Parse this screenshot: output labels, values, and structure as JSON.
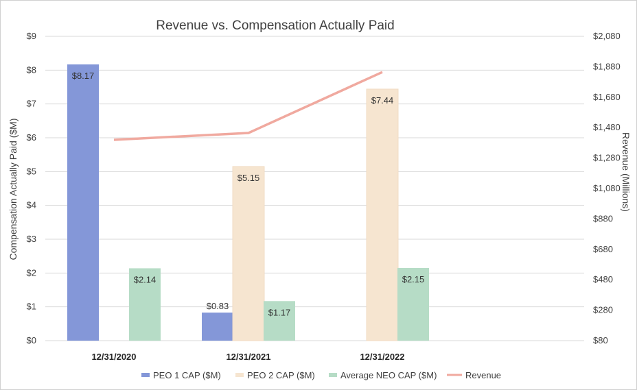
{
  "chart_data": {
    "type": "bar",
    "title": "Revenue vs. Compensation Actually Paid",
    "categories": [
      "12/31/2020",
      "12/31/2021",
      "12/31/2022"
    ],
    "series": [
      {
        "name": "PEO 1 CAP ($M)",
        "color": "#8497d8",
        "values": [
          8.17,
          0.83,
          null
        ],
        "labels": [
          "$8.17",
          "$0.83",
          ""
        ]
      },
      {
        "name": "PEO 2 CAP ($M)",
        "color": "#f6e5d0",
        "values": [
          null,
          5.15,
          7.44
        ],
        "labels": [
          "",
          "$5.15",
          "$7.44"
        ]
      },
      {
        "name": "Average NEO CAP ($M)",
        "color": "#b6dcc6",
        "values": [
          2.14,
          1.17,
          2.15
        ],
        "labels": [
          "$2.14",
          "$1.17",
          "$2.15"
        ]
      }
    ],
    "line_series": {
      "name": "Revenue",
      "color": "#f0a99f",
      "values": [
        1400,
        1445,
        1845
      ],
      "axis": "right"
    },
    "ylabel": "Compensation Actually Paid ($M)",
    "y2label": "Revenue (Millions)",
    "ylim": [
      0,
      9
    ],
    "y2lim": [
      80,
      2080
    ],
    "y_ticks": [
      "$0",
      "$1",
      "$2",
      "$3",
      "$4",
      "$5",
      "$6",
      "$7",
      "$8",
      "$9"
    ],
    "y2_ticks": [
      "$80",
      "$280",
      "$480",
      "$680",
      "$880",
      "$1,080",
      "$1,280",
      "$1,480",
      "$1,680",
      "$1,880",
      "$2,080"
    ],
    "grid": true,
    "legend_position": "bottom"
  }
}
